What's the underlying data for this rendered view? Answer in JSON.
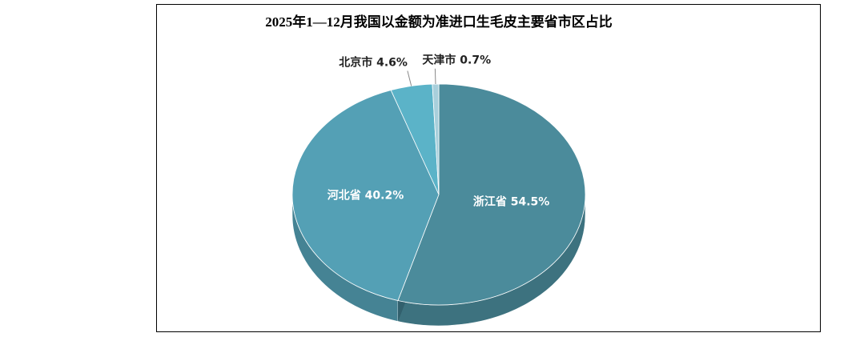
{
  "chart_data": {
    "type": "pie",
    "title": "2025年1—12月我国以金额为准进口生毛皮主要省市区占比",
    "categories": [
      "浙江省",
      "河北省",
      "北京市",
      "天津市"
    ],
    "values": [
      54.5,
      40.2,
      4.6,
      0.7
    ],
    "value_labels": [
      "54.5%",
      "40.2%",
      "4.6%",
      "0.7%"
    ],
    "colors": [
      "#4b8b9b",
      "#54a0b5",
      "#5bb3c8",
      "#a8cfdb"
    ]
  }
}
